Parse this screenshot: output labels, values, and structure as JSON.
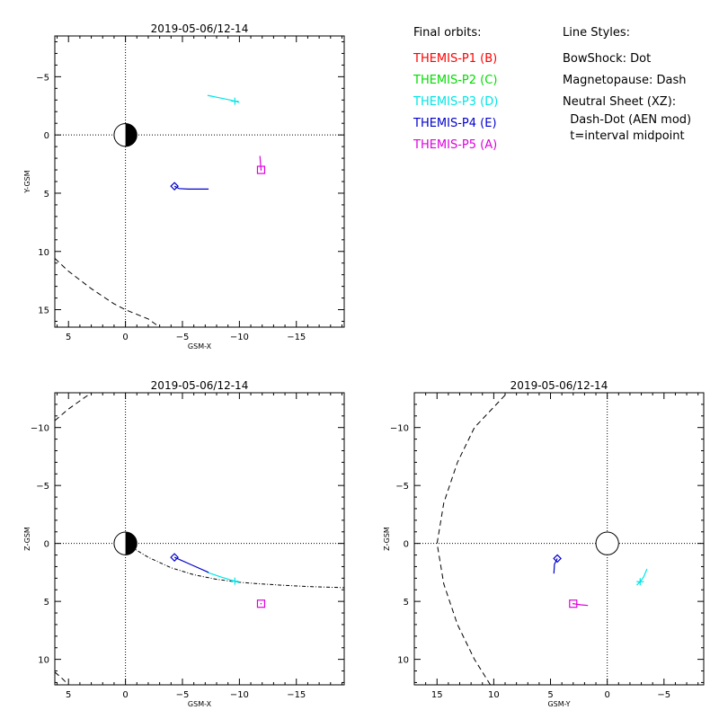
{
  "legend": {
    "orbits_title": "Final orbits:",
    "orbits": [
      {
        "label": "THEMIS-P1 (B)",
        "color": "#ff0000"
      },
      {
        "label": "THEMIS-P2 (C)",
        "color": "#00dd00"
      },
      {
        "label": "THEMIS-P3 (D)",
        "color": "#00e5e5"
      },
      {
        "label": "THEMIS-P4 (E)",
        "color": "#0000cc"
      },
      {
        "label": "THEMIS-P5 (A)",
        "color": "#dd00dd"
      }
    ],
    "styles_title": "Line Styles:",
    "styles": [
      "BowShock: Dot",
      "Magnetopause: Dash",
      "Neutral Sheet (XZ):",
      "  Dash-Dot (AEN mod)",
      "  t=interval midpoint"
    ]
  },
  "chart_data": [
    {
      "id": "xy",
      "type": "scatter",
      "title": "2019-05-06/12-14",
      "xlabel": "GSM-X",
      "ylabel": "Y-GSM",
      "xlim": [
        6.2,
        -19.2
      ],
      "ylim": [
        -8.5,
        16.5
      ],
      "xticks": [
        5,
        0,
        -5,
        -10,
        -15
      ],
      "yticks": [
        -5,
        0,
        5,
        10,
        15
      ],
      "earth": {
        "center": [
          0,
          0
        ],
        "radius": 1,
        "night_side": "negative-x"
      },
      "magnetopause": [
        [
          6.2,
          10.6
        ],
        [
          5,
          11.7
        ],
        [
          3,
          13.2
        ],
        [
          1,
          14.5
        ],
        [
          0,
          15
        ],
        [
          -2,
          15.8
        ],
        [
          -3,
          16.5
        ]
      ],
      "series": [
        {
          "color": "#00e5e5",
          "marker": "plus",
          "marker_at": [
            -9.6,
            -2.9
          ],
          "points": [
            [
              -7.2,
              -3.4
            ],
            [
              -8.2,
              -3.2
            ],
            [
              -9.2,
              -3.0
            ],
            [
              -9.6,
              -2.9
            ],
            [
              -10.0,
              -2.8
            ]
          ]
        },
        {
          "color": "#0000cc",
          "marker": "diamond",
          "marker_at": [
            -4.3,
            4.4
          ],
          "points": [
            [
              -4.3,
              4.4
            ],
            [
              -4.7,
              4.6
            ],
            [
              -5.5,
              4.65
            ],
            [
              -7.3,
              4.65
            ]
          ]
        },
        {
          "color": "#dd00dd",
          "marker": "square",
          "marker_at": [
            -11.9,
            3.0
          ],
          "points": [
            [
              -11.9,
              3.0
            ],
            [
              -11.85,
              2.4
            ],
            [
              -11.8,
              1.8
            ]
          ]
        }
      ]
    },
    {
      "id": "xz",
      "type": "scatter",
      "title": "2019-05-06/12-14",
      "xlabel": "GSM-X",
      "ylabel": "Z-GSM",
      "xlim": [
        6.2,
        -19.2
      ],
      "ylim": [
        -13,
        12.2
      ],
      "xticks": [
        5,
        0,
        -5,
        -10,
        -15
      ],
      "yticks": [
        -10,
        -5,
        0,
        5,
        10
      ],
      "earth": {
        "center": [
          0,
          0
        ],
        "radius": 1,
        "night_side": "negative-x"
      },
      "magnetopause_upper": [
        [
          6.2,
          11.1
        ],
        [
          5.5,
          11.7
        ],
        [
          5,
          12.2
        ]
      ],
      "magnetopause_lower": [
        [
          6.2,
          -10.6
        ],
        [
          5,
          -11.6
        ],
        [
          3,
          -13
        ]
      ],
      "neutral_sheet": [
        [
          -0.5,
          0.3
        ],
        [
          -2,
          1.2
        ],
        [
          -4,
          2.1
        ],
        [
          -6,
          2.7
        ],
        [
          -8,
          3.1
        ],
        [
          -10,
          3.35
        ],
        [
          -12,
          3.5
        ],
        [
          -14,
          3.62
        ],
        [
          -16,
          3.72
        ],
        [
          -19.2,
          3.82
        ]
      ],
      "series": [
        {
          "color": "#00e5e5",
          "marker": "plus",
          "marker_at": [
            -9.6,
            3.25
          ],
          "points": [
            [
              -7.2,
              2.5
            ],
            [
              -8.4,
              2.9
            ],
            [
              -9.6,
              3.25
            ],
            [
              -10.0,
              3.4
            ]
          ]
        },
        {
          "color": "#0000cc",
          "marker": "diamond",
          "marker_at": [
            -4.3,
            1.2
          ],
          "points": [
            [
              -4.3,
              1.2
            ],
            [
              -5.8,
              1.85
            ],
            [
              -7.3,
              2.5
            ]
          ]
        },
        {
          "color": "#dd00dd",
          "marker": "square",
          "marker_at": [
            -11.9,
            5.2
          ],
          "points": [
            [
              -11.9,
              5.2
            ]
          ]
        }
      ]
    },
    {
      "id": "yz",
      "type": "scatter",
      "title": "2019-05-06/12-14",
      "xlabel": "GSM-Y",
      "ylabel": "Z-GSM",
      "xlim": [
        17.0,
        -8.5
      ],
      "ylim": [
        -13,
        12.2
      ],
      "xticks": [
        15,
        10,
        5,
        0,
        -5
      ],
      "yticks": [
        -10,
        -5,
        0,
        5,
        10
      ],
      "earth": {
        "center": [
          0,
          0
        ],
        "radius": 1,
        "night_side": "none"
      },
      "magnetopause": [
        [
          10.3,
          12.2
        ],
        [
          11.7,
          10
        ],
        [
          13.2,
          7
        ],
        [
          14.4,
          3.5
        ],
        [
          15,
          0
        ],
        [
          14.4,
          -3.5
        ],
        [
          13.2,
          -7
        ],
        [
          11.7,
          -10
        ],
        [
          8.8,
          -13
        ]
      ],
      "series": [
        {
          "color": "#00e5e5",
          "marker": "plus",
          "marker_at": [
            -2.9,
            3.3
          ],
          "points": [
            [
              -2.6,
              3.6
            ],
            [
              -2.9,
              3.3
            ],
            [
              -3.2,
              2.9
            ],
            [
              -3.5,
              2.2
            ]
          ]
        },
        {
          "color": "#0000cc",
          "marker": "diamond",
          "marker_at": [
            4.4,
            1.3
          ],
          "points": [
            [
              4.7,
              2.6
            ],
            [
              4.65,
              1.8
            ],
            [
              4.4,
              1.3
            ]
          ]
        },
        {
          "color": "#dd00dd",
          "marker": "square",
          "marker_at": [
            3.0,
            5.2
          ],
          "points": [
            [
              3.0,
              5.2
            ],
            [
              2.3,
              5.3
            ],
            [
              1.7,
              5.35
            ]
          ]
        }
      ]
    }
  ]
}
